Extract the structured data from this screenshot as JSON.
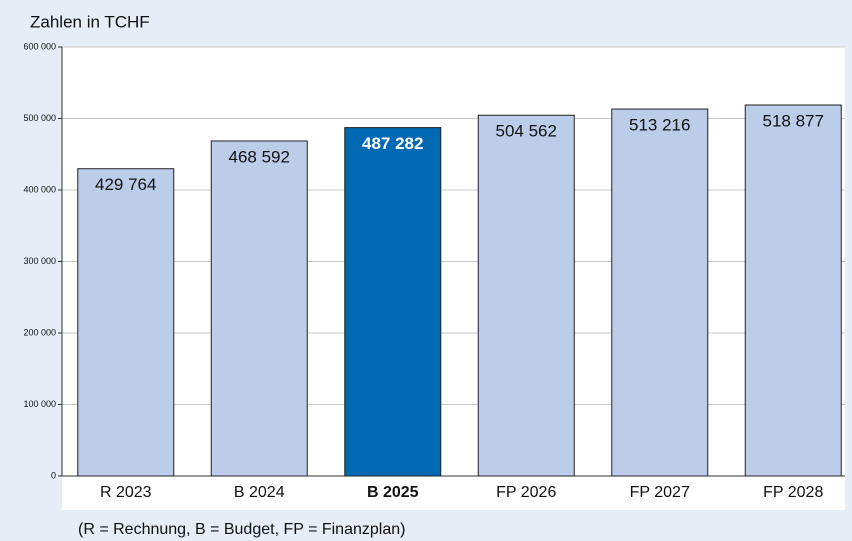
{
  "chart_data": {
    "type": "bar",
    "title": "Zahlen in TCHF",
    "note": "(R = Rechnung, B = Budget, FP = Finanzplan)",
    "categories": [
      "R 2023",
      "B 2024",
      "B 2025",
      "FP 2026",
      "FP 2027",
      "FP 2028"
    ],
    "values": [
      429764,
      468592,
      487282,
      504562,
      513216,
      518877
    ],
    "value_labels": [
      "429 764",
      "468 592",
      "487 282",
      "504 562",
      "513 216",
      "518 877"
    ],
    "color": "#bccde9",
    "highlight": 2,
    "highlight_color": "#0069b4",
    "ylim": [
      0,
      600000
    ],
    "yticks": [
      {
        "value": 0,
        "label": "0"
      },
      {
        "value": 100000,
        "label": "100 000"
      },
      {
        "value": 200000,
        "label": "200 000"
      },
      {
        "value": 300000,
        "label": "300 000"
      },
      {
        "value": 400000,
        "label": "400 000"
      },
      {
        "value": 500000,
        "label": "500 000"
      },
      {
        "value": 600000,
        "label": "600 000"
      }
    ],
    "grid": true
  }
}
